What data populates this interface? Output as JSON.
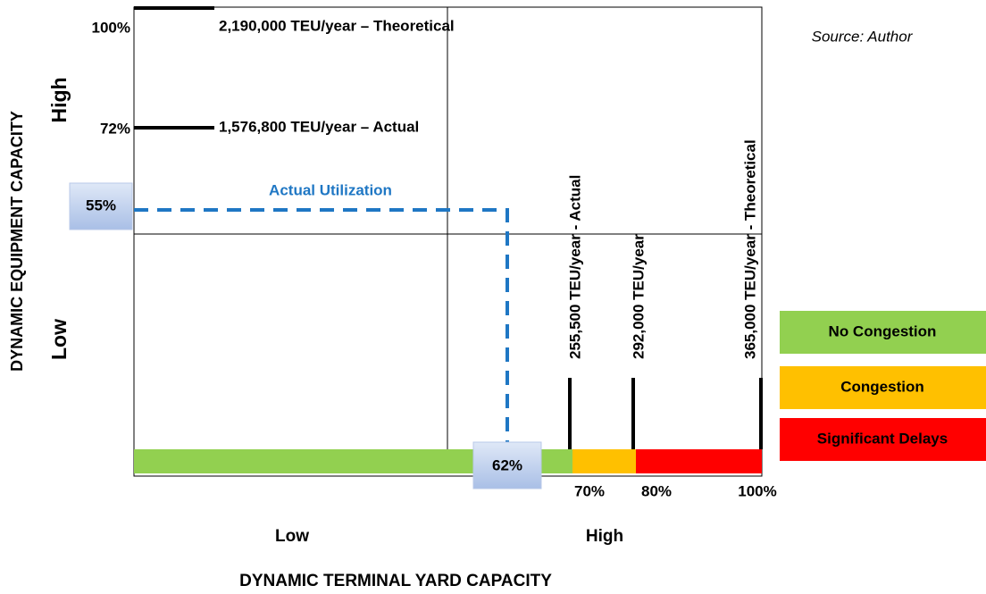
{
  "source": "Source:  Author",
  "y_axis": {
    "title": "DYNAMIC EQUIPMENT CAPACITY",
    "high": "High",
    "low": "Low",
    "levels": [
      {
        "percent": "100%",
        "label": "2,190,000 TEU/year – Theoretical"
      },
      {
        "percent": "72%",
        "label": "1,576,800 TEU/year – Actual"
      }
    ]
  },
  "utilization": {
    "label": "Actual Utilization",
    "equipment": "55%",
    "yard": "62%"
  },
  "x_axis": {
    "title": "DYNAMIC TERMINAL YARD CAPACITY",
    "low": "Low",
    "high": "High",
    "thresholds": [
      {
        "percent": "70%",
        "label": "255,500 TEU/year - Actual"
      },
      {
        "percent": "80%",
        "label": "292,000 TEU/year"
      },
      {
        "percent": "100%",
        "label": "365,000 TEU/year - Theoretical"
      }
    ]
  },
  "legend": [
    "No Congestion",
    "Congestion",
    "Significant Delays"
  ]
}
